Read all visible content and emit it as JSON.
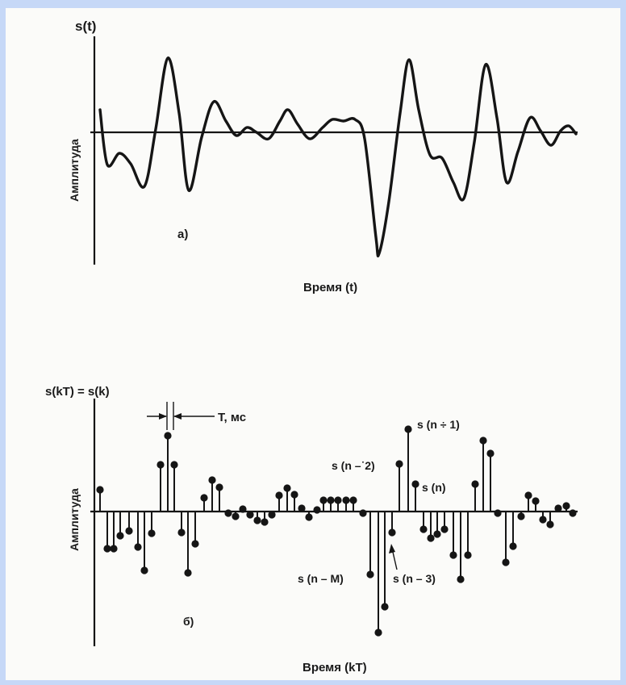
{
  "top_plot": {
    "y_label": "s(t)",
    "amplitude_label": "Амплитуда",
    "x_label": "Время (t)",
    "panel_label": "а)"
  },
  "bottom_plot": {
    "y_label": "s(kT) = s(k)",
    "amplitude_label": "Амплитуда",
    "x_label": "Время (kT)",
    "panel_label": "б)",
    "period_label": "T, мс",
    "annotations": {
      "n_plus_1": "s (n ÷ 1)",
      "n_minus_2": "s (n –˙2)",
      "n": "s (n)",
      "n_minus_M": "s (n – M)",
      "n_minus_3": "s (n – 3)"
    }
  }
}
